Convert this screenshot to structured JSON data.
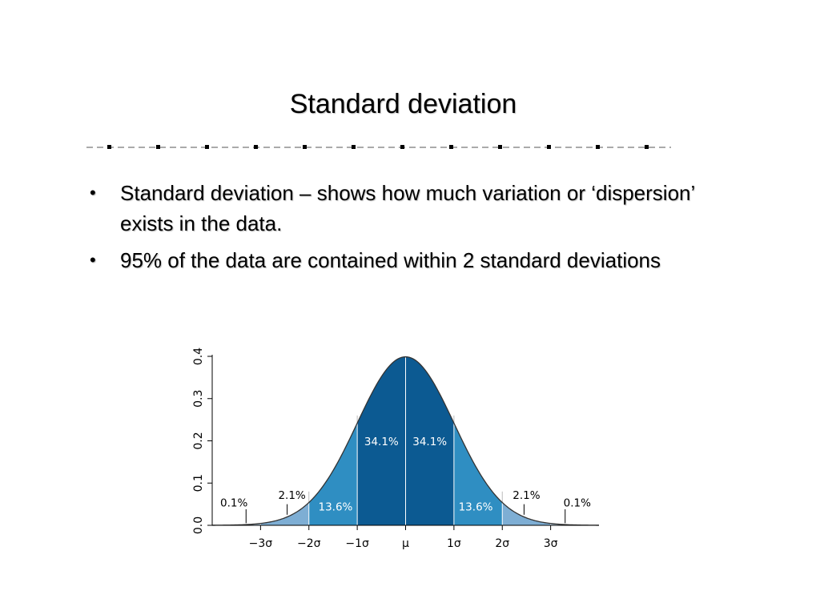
{
  "slide": {
    "title": "Standard deviation",
    "bullets": [
      "Standard deviation – shows how much variation or ‘dispersion’ exists in the data.",
      "95% of the data are contained within 2 standard deviations"
    ]
  },
  "chart_data": {
    "type": "area",
    "title": "",
    "xlabel": "",
    "ylabel": "",
    "xlim": [
      -4,
      4
    ],
    "ylim": [
      0,
      0.4
    ],
    "y_ticks": [
      0.0,
      0.1,
      0.2,
      0.3,
      0.4
    ],
    "y_tick_labels": [
      "0.0",
      "0.1",
      "0.2",
      "0.3",
      "0.4"
    ],
    "x_ticks": [
      -3,
      -2,
      -1,
      0,
      1,
      2,
      3
    ],
    "x_tick_labels": [
      "−3σ",
      "−2σ",
      "−1σ",
      "μ",
      "1σ",
      "2σ",
      "3σ"
    ],
    "distribution": "standard normal",
    "bands": [
      {
        "from": -3,
        "to": -2,
        "label": "2.1%",
        "color": "#7eaed4"
      },
      {
        "from": -2,
        "to": -1,
        "label": "13.6%",
        "color": "#2f8ec2"
      },
      {
        "from": -1,
        "to": 0,
        "label": "34.1%",
        "color": "#0c5a92"
      },
      {
        "from": 0,
        "to": 1,
        "label": "34.1%",
        "color": "#0c5a92"
      },
      {
        "from": 1,
        "to": 2,
        "label": "13.6%",
        "color": "#2f8ec2"
      },
      {
        "from": 2,
        "to": 3,
        "label": "2.1%",
        "color": "#7eaed4"
      }
    ],
    "tails": [
      {
        "side": "left",
        "label": "0.1%"
      },
      {
        "side": "right",
        "label": "0.1%"
      }
    ],
    "grid": false
  }
}
